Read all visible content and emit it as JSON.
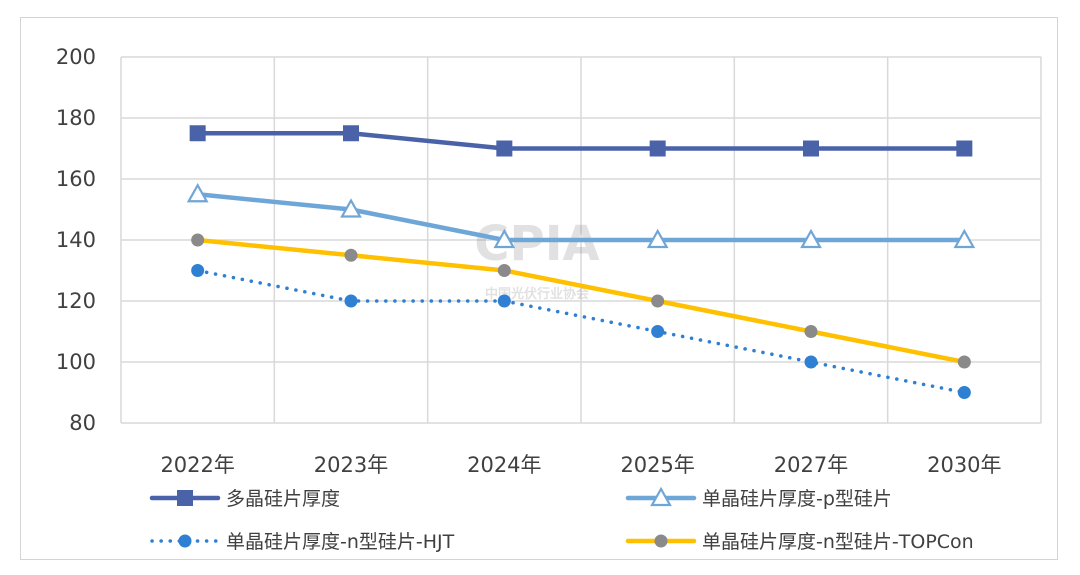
{
  "chart_data": {
    "type": "line",
    "categories": [
      "2022年",
      "2023年",
      "2024年",
      "2025年",
      "2027年",
      "2030年"
    ],
    "ylim": [
      80,
      200
    ],
    "yticks": [
      80,
      100,
      120,
      140,
      160,
      180,
      200
    ],
    "grid": true,
    "legend_position": "bottom",
    "series": [
      {
        "name": "多晶硅片厚度",
        "values": [
          175,
          175,
          170,
          170,
          170,
          170
        ],
        "color": "#4a62a8",
        "marker": "square",
        "line": "solid"
      },
      {
        "name": "单晶硅片厚度-p型硅片",
        "values": [
          155,
          150,
          140,
          140,
          140,
          140
        ],
        "color": "#6fa6d8",
        "marker": "triangle",
        "line": "solid"
      },
      {
        "name": "单晶硅片厚度-n型硅片-HJT",
        "values": [
          130,
          120,
          120,
          110,
          100,
          90
        ],
        "color": "#2f7fd2",
        "marker": "circle",
        "line": "dotted"
      },
      {
        "name": "单晶硅片厚度-n型硅片-TOPCon",
        "values": [
          140,
          135,
          130,
          120,
          110,
          100
        ],
        "color": "#ffc000",
        "marker": "circle-gray",
        "line": "solid"
      }
    ]
  },
  "watermark": {
    "logo": "CPIA",
    "text": "中国光伏行业协会"
  }
}
